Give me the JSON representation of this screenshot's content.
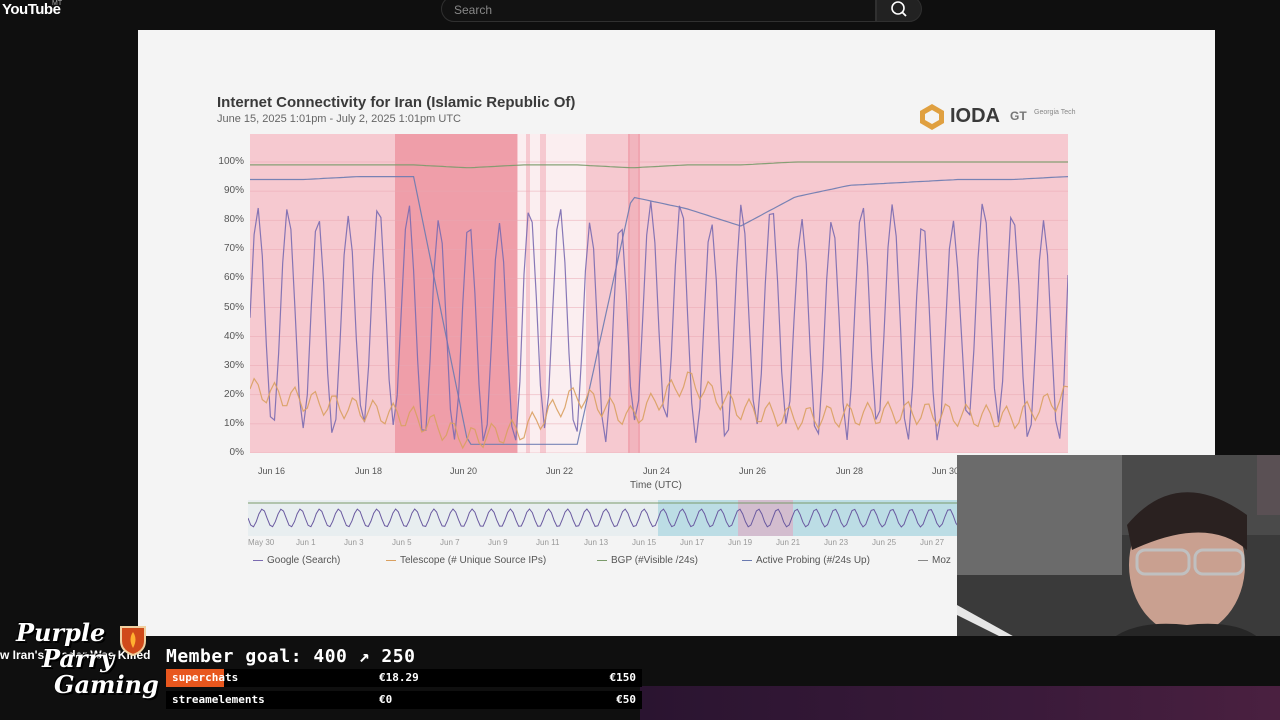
{
  "app": {
    "logo": "YouTube",
    "logo_sup": "MT"
  },
  "search": {
    "placeholder": "Search"
  },
  "slide": {
    "title": "Internet Connectivity for Iran (Islamic Republic Of)",
    "subtitle": "June 15, 2025 1:01pm - July 2, 2025 1:01pm UTC",
    "brand": "IODA",
    "partner": "GT",
    "partner_small": "Georgia Tech"
  },
  "chart_data": {
    "type": "line",
    "title": "Internet Connectivity for Iran (Islamic Republic Of)",
    "subtitle": "June 15, 2025 1:01pm - July 2, 2025 1:01pm UTC",
    "xlabel": "Time (UTC)",
    "ylabel": "",
    "y_ticks": [
      "100%",
      "90%",
      "80%",
      "70%",
      "60%",
      "50%",
      "40%",
      "30%",
      "20%",
      "10%",
      "0%"
    ],
    "x_ticks": [
      "Jun 16",
      "Jun 18",
      "Jun 20",
      "Jun 22",
      "Jun 24",
      "Jun 26",
      "Jun 28",
      "Jun 30"
    ],
    "ylim": [
      0,
      100
    ],
    "overview_ticks": [
      "May 30",
      "Jun 1",
      "Jun 3",
      "Jun 5",
      "Jun 7",
      "Jun 9",
      "Jun 11",
      "Jun 13",
      "Jun 15",
      "Jun 17",
      "Jun 19",
      "Jun 21",
      "Jun 23",
      "Jun 25",
      "Jun 27"
    ],
    "legend": [
      "Google (Search)",
      "Telescope (# Unique Source IPs)",
      "BGP (#Visible /24s)",
      "Active Probing (#/24s Up)",
      "Moz"
    ],
    "series": [
      {
        "name": "BGP (#Visible /24s)",
        "color": "#7a9a6a",
        "values": [
          99,
          99,
          99,
          99,
          98,
          99,
          99,
          98,
          99,
          99,
          100,
          100,
          100,
          100,
          100,
          100
        ]
      },
      {
        "name": "Active Probing (#/24s Up)",
        "color": "#6a7ab0",
        "values": [
          94,
          94,
          95,
          95,
          3,
          3,
          3,
          88,
          84,
          78,
          88,
          92,
          93,
          94,
          94,
          95
        ]
      },
      {
        "name": "Google (Search)",
        "color": "#7a6ab0",
        "values": [
          60,
          30,
          70,
          20,
          5,
          60,
          10,
          80,
          10,
          70,
          20,
          70,
          15,
          80,
          15,
          75
        ]
      },
      {
        "name": "Telescope (# Unique Source IPs)",
        "color": "#d9a060",
        "values": [
          22,
          18,
          15,
          12,
          5,
          8,
          20,
          12,
          25,
          15,
          12,
          13,
          14,
          13,
          12,
          20
        ]
      }
    ],
    "colors": {
      "outage_bg": "#f6c9d0",
      "outage_strong": "#ec8f9c"
    }
  },
  "stream": {
    "ticker": "w Iran's Leader Was Killed",
    "member_goal": "Member goal: 400 ↗ 250",
    "brand_line1": "Purple",
    "brand_line2": "Parry",
    "brand_line3": "Gaming",
    "rows": [
      {
        "label": "superchats",
        "v1": "€18.29",
        "v2": "€150"
      },
      {
        "label": "streamelements",
        "v1": "€0",
        "v2": "€50"
      }
    ]
  }
}
